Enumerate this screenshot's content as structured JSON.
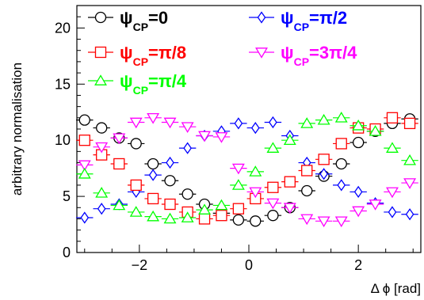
{
  "chart_data": {
    "type": "scatter",
    "xlabel": "Δ ϕ [rad]",
    "ylabel": "arbitrary normalisation",
    "xlim": [
      -3.1416,
      3.1416
    ],
    "ylim": [
      0,
      22
    ],
    "xticks": [
      -2,
      0,
      2
    ],
    "yticks": [
      0,
      5,
      10,
      15,
      20
    ],
    "grid": false,
    "legend_position": "top",
    "x": [
      -3.0,
      -2.69,
      -2.37,
      -2.06,
      -1.75,
      -1.44,
      -1.12,
      -0.81,
      -0.5,
      -0.19,
      0.12,
      0.44,
      0.75,
      1.06,
      1.37,
      1.69,
      2.0,
      2.31,
      2.62,
      2.94
    ],
    "series": [
      {
        "name": "ψCP=0",
        "label_main": "ψ",
        "label_sub": "CP",
        "label_tail": "=0",
        "marker": "circle",
        "color": "#000000",
        "values": [
          11.8,
          11.1,
          10.2,
          9.7,
          7.9,
          6.4,
          5.2,
          4.3,
          3.5,
          2.9,
          2.8,
          3.3,
          4.0,
          5.5,
          6.8,
          7.9,
          9.8,
          10.8,
          11.5,
          11.9
        ]
      },
      {
        "name": "ψCP=π/2",
        "label_main": "ψ",
        "label_sub": "CP",
        "label_tail": "=π/2",
        "marker": "diamond",
        "color": "#0000ff",
        "values": [
          3.1,
          3.9,
          4.3,
          5.4,
          6.9,
          8.0,
          9.3,
          10.4,
          10.8,
          11.5,
          11.1,
          11.6,
          10.4,
          8.0,
          7.0,
          6.0,
          5.4,
          4.4,
          3.6,
          3.4
        ]
      },
      {
        "name": "ψCP=π/8",
        "label_main": "ψ",
        "label_sub": "CP",
        "label_tail": "=π/8",
        "marker": "square",
        "color": "#ff0000",
        "values": [
          10.0,
          8.7,
          7.9,
          6.0,
          4.8,
          4.3,
          3.6,
          3.0,
          3.3,
          3.9,
          4.8,
          5.8,
          6.3,
          7.3,
          8.3,
          9.7,
          11.1,
          11.0,
          12.0,
          11.5
        ]
      },
      {
        "name": "ψCP=3π/4",
        "label_main": "ψ",
        "label_sub": "CP",
        "label_tail": "=3π/4",
        "marker": "triangle-down",
        "color": "#ff00ff",
        "values": [
          7.8,
          9.4,
          10.2,
          11.6,
          12.0,
          11.6,
          11.2,
          10.4,
          10.3,
          7.5,
          5.4,
          4.4,
          4.0,
          3.0,
          2.8,
          2.8,
          3.7,
          4.3,
          5.4,
          6.2
        ]
      },
      {
        "name": "ψCP=π/4",
        "label_main": "ψ",
        "label_sub": "CP",
        "label_tail": "=π/4",
        "marker": "triangle-up",
        "color": "#00ff00",
        "values": [
          7.0,
          5.3,
          4.2,
          3.6,
          3.2,
          3.0,
          3.1,
          3.8,
          4.2,
          6.0,
          7.2,
          9.3,
          10.0,
          11.5,
          11.8,
          12.0,
          11.3,
          10.8,
          9.3,
          8.2
        ]
      }
    ],
    "legend_layout": [
      {
        "series": 0,
        "col": 0,
        "row": 0
      },
      {
        "series": 1,
        "col": 1,
        "row": 0
      },
      {
        "series": 2,
        "col": 0,
        "row": 1
      },
      {
        "series": 3,
        "col": 1,
        "row": 1
      },
      {
        "series": 4,
        "col": 0,
        "row": 2
      }
    ]
  }
}
